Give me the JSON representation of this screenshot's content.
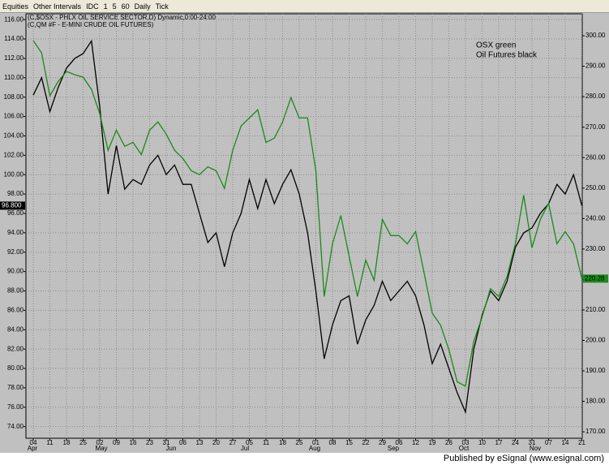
{
  "toolbar": {
    "items": [
      "Equities",
      "Other Intervals",
      "IDC",
      "1",
      "5",
      "60",
      "Daily",
      "Tick"
    ]
  },
  "footer": "Published by eSignal (www.esignal.com)",
  "chart_data": {
    "type": "line",
    "headers": [
      "(C,$OSX - PHLX OIL SERVICE SECTOR,D) Dynamic,0:00-24:00",
      "(C,QM #F - E-MINI CRUDE OIL FUTURES)"
    ],
    "annotations": [
      "OSX green",
      "Oil Futures black"
    ],
    "categories": [
      "04",
      null,
      "11",
      null,
      "18",
      null,
      "25",
      null,
      "02",
      null,
      "09",
      null,
      "16",
      null,
      "23",
      null,
      "31",
      null,
      "06",
      null,
      "13",
      null,
      "20",
      null,
      "27",
      null,
      "05",
      null,
      "11",
      null,
      "18",
      null,
      "25",
      null,
      "01",
      null,
      "08",
      null,
      "15",
      null,
      "22",
      null,
      "29",
      null,
      "06",
      null,
      "12",
      null,
      "19",
      null,
      "26",
      null,
      "03",
      null,
      "10",
      null,
      "17",
      null,
      "24",
      null,
      "31",
      null,
      "07",
      null,
      "14",
      null,
      "21"
    ],
    "months": [
      "Apr",
      "May",
      "Jun",
      "Jul",
      "Aug",
      "Sep",
      "Oct",
      "Nov"
    ],
    "series": [
      {
        "name": "Oil Futures",
        "color": "#000000",
        "axis": "y",
        "last_label": "96.800",
        "values": [
          108.2,
          110,
          106.5,
          109,
          111,
          112,
          112.5,
          113.8,
          107,
          98,
          103,
          98.5,
          99.5,
          99,
          101,
          102,
          100,
          101,
          99,
          99,
          96,
          93,
          94,
          90.5,
          94,
          96,
          99.5,
          96.5,
          99.5,
          97,
          99,
          100.5,
          98,
          94,
          88,
          81,
          84.5,
          87,
          87.5,
          82.5,
          85,
          86.5,
          89,
          87,
          88,
          89,
          87.5,
          84.5,
          80.5,
          82.5,
          80,
          77.5,
          75.5,
          82,
          85.5,
          88,
          87,
          89,
          92.5,
          94,
          94.5,
          96,
          97,
          99,
          98,
          100,
          96.8
        ]
      },
      {
        "name": "OSX",
        "color": "#1a8a1a",
        "axis": "y2",
        "last_label": "220.28",
        "values": [
          298.4,
          294.4,
          280.3,
          285,
          288.3,
          287.2,
          286.4,
          282.4,
          274.4,
          262.4,
          269,
          263.7,
          265,
          261,
          269,
          271.7,
          267.7,
          262.4,
          259.7,
          255.7,
          254.4,
          257,
          255.7,
          249.9,
          262.4,
          270.4,
          273,
          275.7,
          265,
          266.4,
          271.7,
          279.7,
          273,
          273,
          255.7,
          214.4,
          231.7,
          241,
          227.7,
          214.4,
          226.4,
          219.7,
          239.7,
          234.4,
          234.4,
          231.7,
          235.7,
          222.4,
          209,
          205,
          197,
          186.4,
          185,
          199.7,
          207.7,
          217,
          214.4,
          221,
          231.7,
          247.7,
          230.4,
          239.7,
          245,
          231.7,
          235.7,
          231.7,
          220.28
        ]
      }
    ],
    "ylim": [
      72.8,
      116.6
    ],
    "yticks": [
      {
        "value": 74,
        "label": "74.00"
      },
      {
        "value": 76,
        "label": "76.00"
      },
      {
        "value": 78,
        "label": "78.00"
      },
      {
        "value": 80,
        "label": "80.00"
      },
      {
        "value": 82,
        "label": "82.00"
      },
      {
        "value": 84,
        "label": "84.00"
      },
      {
        "value": 86,
        "label": "86.00"
      },
      {
        "value": 88,
        "label": "88.00"
      },
      {
        "value": 90,
        "label": "90.00"
      },
      {
        "value": 92,
        "label": "92.00"
      },
      {
        "value": 94,
        "label": "94.00"
      },
      {
        "value": 96,
        "label": "96.00"
      },
      {
        "value": 98,
        "label": "98.00"
      },
      {
        "value": 100,
        "label": "100.00"
      },
      {
        "value": 102,
        "label": "102.00"
      },
      {
        "value": 104,
        "label": "104.00"
      },
      {
        "value": 106,
        "label": "106.00"
      },
      {
        "value": 108,
        "label": "108.00"
      },
      {
        "value": 110,
        "label": "110.00"
      },
      {
        "value": 112,
        "label": "112.00"
      },
      {
        "value": 114,
        "label": "114.00"
      },
      {
        "value": 116,
        "label": "116.00"
      }
    ],
    "y2lim": [
      167.9,
      307.2
    ],
    "y2ticks": [
      {
        "value": 170,
        "label": "170.00"
      },
      {
        "value": 180,
        "label": "180.00"
      },
      {
        "value": 190,
        "label": "190.00"
      },
      {
        "value": 200,
        "label": "200.00"
      },
      {
        "value": 210,
        "label": "210.00"
      },
      {
        "value": 220,
        "label": "220.00"
      },
      {
        "value": 230,
        "label": "230.00"
      },
      {
        "value": 240,
        "label": "240.00"
      },
      {
        "value": 250,
        "label": "250.00"
      },
      {
        "value": 260,
        "label": "260.00"
      },
      {
        "value": 270,
        "label": "270.00"
      },
      {
        "value": 280,
        "label": "280.00"
      },
      {
        "value": 290,
        "label": "290.00"
      },
      {
        "value": 300,
        "label": "300.00"
      }
    ],
    "grid": true
  }
}
